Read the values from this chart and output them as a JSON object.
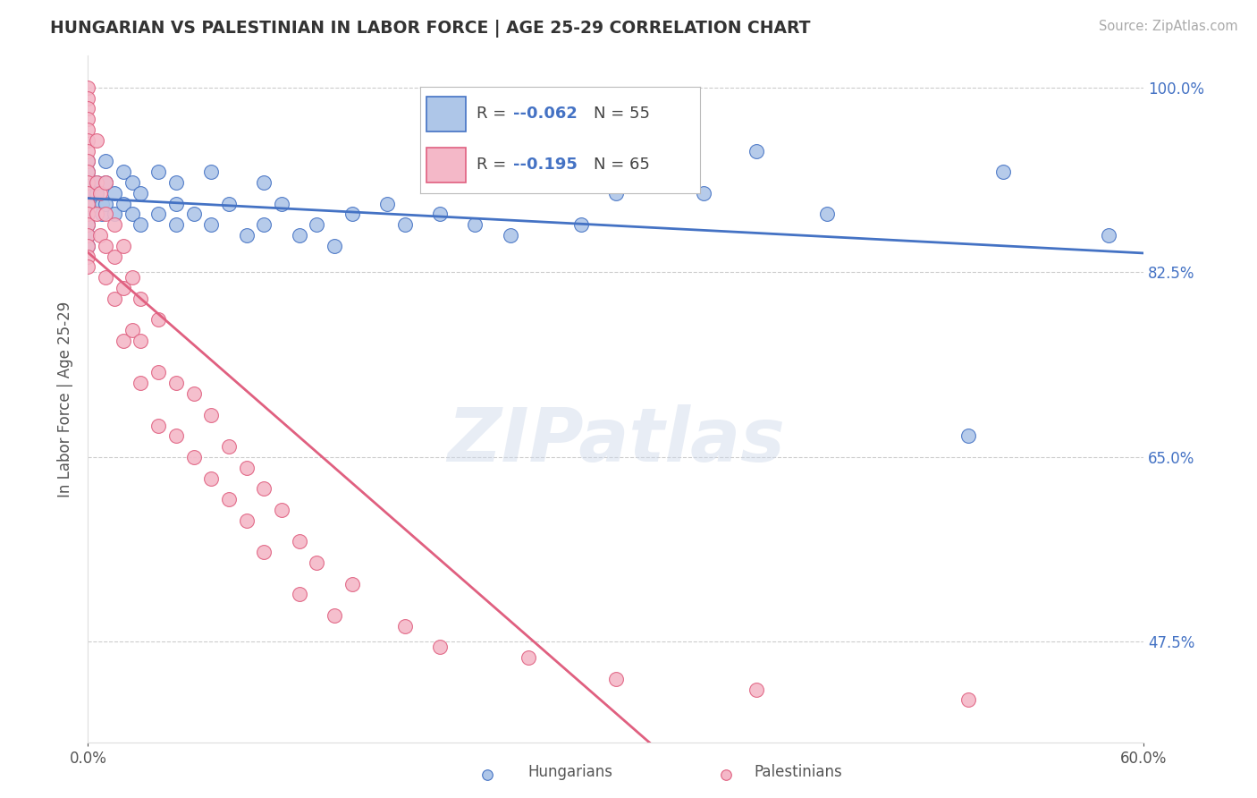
{
  "title": "HUNGARIAN VS PALESTINIAN IN LABOR FORCE | AGE 25-29 CORRELATION CHART",
  "source_text": "Source: ZipAtlas.com",
  "ylabel": "In Labor Force | Age 25-29",
  "xlabel_hungarians": "Hungarians",
  "xlabel_palestinians": "Palestinians",
  "watermark": "ZIPatlas",
  "xmin": 0.0,
  "xmax": 0.6,
  "ymin": 0.38,
  "ymax": 1.03,
  "ytick_vals": [
    0.475,
    0.65,
    0.825,
    1.0
  ],
  "ytick_labels": [
    "47.5%",
    "65.0%",
    "82.5%",
    "100.0%"
  ],
  "legend_r_val_hun": "-0.062",
  "legend_n_hun": "N = 55",
  "legend_r_val_pal": "-0.195",
  "legend_n_pal": "N = 65",
  "color_hungarian": "#aec6e8",
  "color_palestinian": "#f4b8c8",
  "color_line_hungarian": "#4472c4",
  "color_line_palestinian": "#e06080",
  "color_line_dashed": "#d0a0b0",
  "background_color": "#ffffff",
  "hun_x": [
    0.0,
    0.0,
    0.0,
    0.0,
    0.0,
    0.0,
    0.0,
    0.0,
    0.0,
    0.0,
    0.005,
    0.005,
    0.008,
    0.008,
    0.01,
    0.01,
    0.01,
    0.015,
    0.015,
    0.02,
    0.02,
    0.025,
    0.025,
    0.03,
    0.03,
    0.04,
    0.04,
    0.05,
    0.05,
    0.05,
    0.06,
    0.07,
    0.07,
    0.08,
    0.09,
    0.1,
    0.1,
    0.11,
    0.12,
    0.13,
    0.14,
    0.15,
    0.17,
    0.18,
    0.2,
    0.22,
    0.24,
    0.28,
    0.3,
    0.35,
    0.38,
    0.42,
    0.5,
    0.52,
    0.58
  ],
  "hun_y": [
    0.93,
    0.92,
    0.91,
    0.91,
    0.9,
    0.89,
    0.88,
    0.87,
    0.86,
    0.85,
    0.91,
    0.9,
    0.89,
    0.88,
    0.93,
    0.91,
    0.89,
    0.9,
    0.88,
    0.92,
    0.89,
    0.91,
    0.88,
    0.9,
    0.87,
    0.92,
    0.88,
    0.91,
    0.89,
    0.87,
    0.88,
    0.92,
    0.87,
    0.89,
    0.86,
    0.91,
    0.87,
    0.89,
    0.86,
    0.87,
    0.85,
    0.88,
    0.89,
    0.87,
    0.88,
    0.87,
    0.86,
    0.87,
    0.9,
    0.9,
    0.94,
    0.88,
    0.67,
    0.92,
    0.86
  ],
  "pal_x": [
    0.0,
    0.0,
    0.0,
    0.0,
    0.0,
    0.0,
    0.0,
    0.0,
    0.0,
    0.0,
    0.0,
    0.0,
    0.0,
    0.0,
    0.0,
    0.0,
    0.0,
    0.0,
    0.005,
    0.005,
    0.005,
    0.007,
    0.007,
    0.01,
    0.01,
    0.01,
    0.01,
    0.015,
    0.015,
    0.015,
    0.02,
    0.02,
    0.02,
    0.025,
    0.025,
    0.03,
    0.03,
    0.03,
    0.04,
    0.04,
    0.04,
    0.05,
    0.05,
    0.06,
    0.06,
    0.07,
    0.07,
    0.08,
    0.08,
    0.09,
    0.09,
    0.1,
    0.1,
    0.11,
    0.12,
    0.12,
    0.13,
    0.14,
    0.15,
    0.18,
    0.2,
    0.25,
    0.3,
    0.38,
    0.5
  ],
  "pal_y": [
    1.0,
    0.99,
    0.98,
    0.97,
    0.96,
    0.95,
    0.94,
    0.93,
    0.92,
    0.91,
    0.9,
    0.89,
    0.88,
    0.87,
    0.86,
    0.85,
    0.84,
    0.83,
    0.95,
    0.91,
    0.88,
    0.9,
    0.86,
    0.91,
    0.88,
    0.85,
    0.82,
    0.87,
    0.84,
    0.8,
    0.85,
    0.81,
    0.76,
    0.82,
    0.77,
    0.8,
    0.76,
    0.72,
    0.78,
    0.73,
    0.68,
    0.72,
    0.67,
    0.71,
    0.65,
    0.69,
    0.63,
    0.66,
    0.61,
    0.64,
    0.59,
    0.62,
    0.56,
    0.6,
    0.57,
    0.52,
    0.55,
    0.5,
    0.53,
    0.49,
    0.47,
    0.46,
    0.44,
    0.43,
    0.42
  ]
}
